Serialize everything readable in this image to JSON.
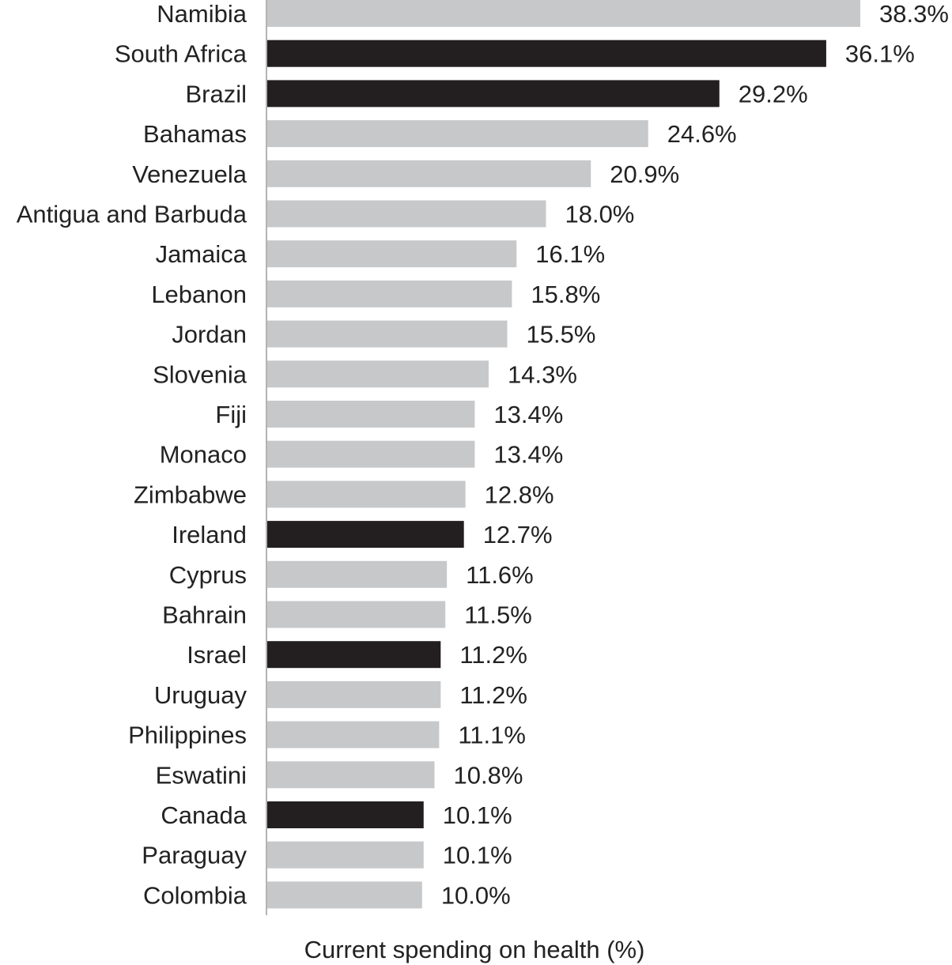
{
  "chart_data": {
    "type": "bar",
    "orientation": "horizontal",
    "categories": [
      "Namibia",
      "South Africa",
      "Brazil",
      "Bahamas",
      "Venezuela",
      "Antigua and Barbuda",
      "Jamaica",
      "Lebanon",
      "Jordan",
      "Slovenia",
      "Fiji",
      "Monaco",
      "Zimbabwe",
      "Ireland",
      "Cyprus",
      "Bahrain",
      "Israel",
      "Uruguay",
      "Philippines",
      "Eswatini",
      "Canada",
      "Paraguay",
      "Colombia"
    ],
    "values": [
      38.3,
      36.1,
      29.2,
      24.6,
      20.9,
      18.0,
      16.1,
      15.8,
      15.5,
      14.3,
      13.4,
      13.4,
      12.8,
      12.7,
      11.6,
      11.5,
      11.2,
      11.2,
      11.1,
      10.8,
      10.1,
      10.1,
      10.0
    ],
    "value_labels": [
      "38.3%",
      "36.1%",
      "29.2%",
      "24.6%",
      "20.9%",
      "18.0%",
      "16.1%",
      "15.8%",
      "15.5%",
      "14.3%",
      "13.4%",
      "13.4%",
      "12.8%",
      "12.7%",
      "11.6%",
      "11.5%",
      "11.2%",
      "11.2%",
      "11.1%",
      "10.8%",
      "10.1%",
      "10.1%",
      "10.0%"
    ],
    "highlighted": [
      false,
      true,
      true,
      false,
      false,
      false,
      false,
      false,
      false,
      false,
      false,
      false,
      false,
      true,
      false,
      false,
      true,
      false,
      false,
      false,
      true,
      false,
      false
    ],
    "xlabel": "Current spending on health (%)",
    "ylabel": "",
    "xlim": [
      0,
      38.3
    ],
    "grid": false,
    "legend": "none",
    "colors": {
      "default": "#c7c8ca",
      "highlight": "#231f20"
    }
  }
}
